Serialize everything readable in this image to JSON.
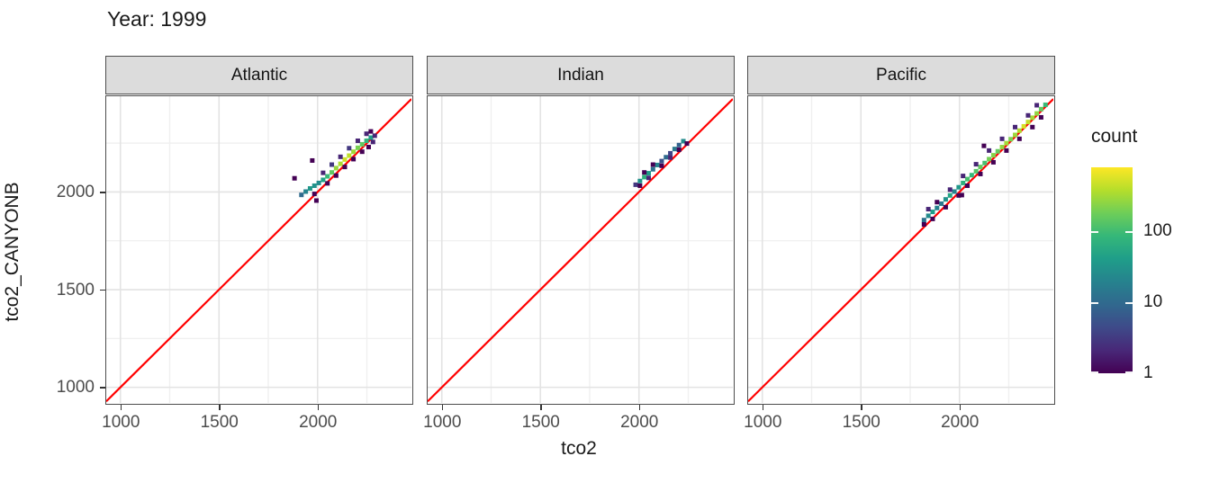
{
  "title": "Year: 1999",
  "axes": {
    "x_title": "tco2",
    "y_title": "tco2_CANYONB",
    "x_tick_labels": [
      "1000",
      "1500",
      "2000"
    ],
    "y_tick_labels": [
      "1000",
      "1500",
      "2000"
    ]
  },
  "legend": {
    "title": "count",
    "tick_labels": [
      "1",
      "10",
      "100"
    ],
    "tick_values": [
      1,
      10,
      100
    ],
    "max_count": 800,
    "scale": "log10",
    "colormap": "viridis"
  },
  "colors": {
    "reference_line": "#ff0000",
    "strip_bg": "#dcdcdc",
    "panel_border": "#4d4d4d",
    "grid_major": "#e3e3e3",
    "grid_minor": "#f0f0f0",
    "tick_label": "#4d4d4d",
    "text": "#1a1a1a",
    "viridis_stops": [
      "#440154",
      "#482878",
      "#3e4a89",
      "#31688e",
      "#26828e",
      "#1f9e89",
      "#35b779",
      "#6ece58",
      "#b5de2b",
      "#fde725"
    ]
  },
  "chart_data": {
    "type": "heatmap",
    "subtype": "bin2d-faceted-scatter",
    "title": "Year: 1999",
    "xlabel": "tco2",
    "ylabel": "tco2_CANYONB",
    "xlim": [
      928,
      2476
    ],
    "ylim": [
      920,
      2490
    ],
    "x_major_ticks": [
      1000,
      1500,
      2000
    ],
    "y_major_ticks": [
      1000,
      1500,
      2000
    ],
    "x_minor_ticks": [
      1250,
      1750,
      2250
    ],
    "y_minor_ticks": [
      1250,
      1750,
      2250
    ],
    "grid": true,
    "legend_position": "right",
    "reference_line": {
      "type": "y=x",
      "color": "#ff0000",
      "width": 2.2
    },
    "bin_size_units": 22,
    "facets": [
      {
        "label": "Atlantic",
        "bins": [
          [
            1918,
            1985,
            10
          ],
          [
            1940,
            2002,
            20
          ],
          [
            1962,
            2018,
            35
          ],
          [
            1984,
            2032,
            30
          ],
          [
            2006,
            2046,
            25
          ],
          [
            2028,
            2062,
            45
          ],
          [
            2050,
            2080,
            90
          ],
          [
            2072,
            2100,
            150
          ],
          [
            2094,
            2122,
            280
          ],
          [
            2116,
            2144,
            350
          ],
          [
            2138,
            2166,
            500
          ],
          [
            2160,
            2186,
            420
          ],
          [
            2182,
            2206,
            300
          ],
          [
            2204,
            2226,
            200
          ],
          [
            2226,
            2244,
            150
          ],
          [
            2248,
            2262,
            80
          ],
          [
            2270,
            2278,
            40
          ],
          [
            1984,
            1990,
            1
          ],
          [
            1994,
            1956,
            1
          ],
          [
            2028,
            2098,
            2
          ],
          [
            2050,
            2044,
            1
          ],
          [
            2072,
            2140,
            3
          ],
          [
            2094,
            2084,
            1
          ],
          [
            2116,
            2180,
            2
          ],
          [
            2138,
            2128,
            1
          ],
          [
            2160,
            2224,
            3
          ],
          [
            2182,
            2168,
            1
          ],
          [
            2204,
            2262,
            2
          ],
          [
            2226,
            2206,
            1
          ],
          [
            2248,
            2298,
            2
          ],
          [
            2259,
            2230,
            1
          ],
          [
            2270,
            2310,
            1
          ],
          [
            2281,
            2256,
            2
          ],
          [
            1883,
            2070,
            1
          ],
          [
            1973,
            2161,
            1
          ],
          [
            2290,
            2288,
            2
          ]
        ]
      },
      {
        "label": "Indian",
        "bins": [
          [
            1983,
            2037,
            3
          ],
          [
            2005,
            2056,
            30
          ],
          [
            2027,
            2076,
            70
          ],
          [
            2049,
            2096,
            40
          ],
          [
            2071,
            2116,
            12
          ],
          [
            2093,
            2138,
            20
          ],
          [
            2115,
            2158,
            5
          ],
          [
            2137,
            2178,
            10
          ],
          [
            2159,
            2198,
            4
          ],
          [
            2181,
            2220,
            15
          ],
          [
            2203,
            2240,
            8
          ],
          [
            2225,
            2260,
            25
          ],
          [
            2005,
            2032,
            1
          ],
          [
            2027,
            2100,
            1
          ],
          [
            2071,
            2140,
            1
          ],
          [
            2115,
            2134,
            1
          ],
          [
            2159,
            2176,
            2
          ],
          [
            2203,
            2216,
            1
          ],
          [
            2243,
            2248,
            1
          ],
          [
            2049,
            2072,
            2
          ]
        ]
      },
      {
        "label": "Pacific",
        "bins": [
          [
            1820,
            1856,
            12
          ],
          [
            1842,
            1878,
            25
          ],
          [
            1864,
            1898,
            40
          ],
          [
            1886,
            1918,
            20
          ],
          [
            1908,
            1940,
            15
          ],
          [
            1930,
            1962,
            30
          ],
          [
            1952,
            1982,
            50
          ],
          [
            1974,
            2002,
            20
          ],
          [
            1996,
            2024,
            35
          ],
          [
            2018,
            2046,
            70
          ],
          [
            2040,
            2066,
            110
          ],
          [
            2062,
            2086,
            85
          ],
          [
            2084,
            2106,
            130
          ],
          [
            2106,
            2128,
            160
          ],
          [
            2128,
            2148,
            110
          ],
          [
            2150,
            2168,
            190
          ],
          [
            2172,
            2188,
            230
          ],
          [
            2194,
            2208,
            160
          ],
          [
            2216,
            2230,
            260
          ],
          [
            2238,
            2250,
            310
          ],
          [
            2260,
            2270,
            210
          ],
          [
            2282,
            2292,
            290
          ],
          [
            2304,
            2314,
            360
          ],
          [
            2326,
            2336,
            520
          ],
          [
            2348,
            2358,
            430
          ],
          [
            2370,
            2380,
            310
          ],
          [
            2392,
            2402,
            260
          ],
          [
            2414,
            2424,
            160
          ],
          [
            2436,
            2446,
            90
          ],
          [
            1820,
            1834,
            1
          ],
          [
            1842,
            1912,
            2
          ],
          [
            1864,
            1862,
            1
          ],
          [
            1886,
            1948,
            1
          ],
          [
            1930,
            1922,
            1
          ],
          [
            1952,
            2012,
            2
          ],
          [
            1996,
            1982,
            1
          ],
          [
            2018,
            2082,
            2
          ],
          [
            2040,
            2032,
            1
          ],
          [
            2084,
            2142,
            2
          ],
          [
            2106,
            2092,
            1
          ],
          [
            2150,
            2212,
            2
          ],
          [
            2172,
            2152,
            1
          ],
          [
            2216,
            2272,
            2
          ],
          [
            2238,
            2212,
            1
          ],
          [
            2282,
            2332,
            2
          ],
          [
            2304,
            2272,
            1
          ],
          [
            2348,
            2392,
            2
          ],
          [
            2370,
            2332,
            1
          ],
          [
            2414,
            2382,
            1
          ],
          [
            2392,
            2444,
            2
          ],
          [
            2124,
            2236,
            1
          ],
          [
            2012,
            1984,
            1
          ]
        ]
      }
    ]
  }
}
